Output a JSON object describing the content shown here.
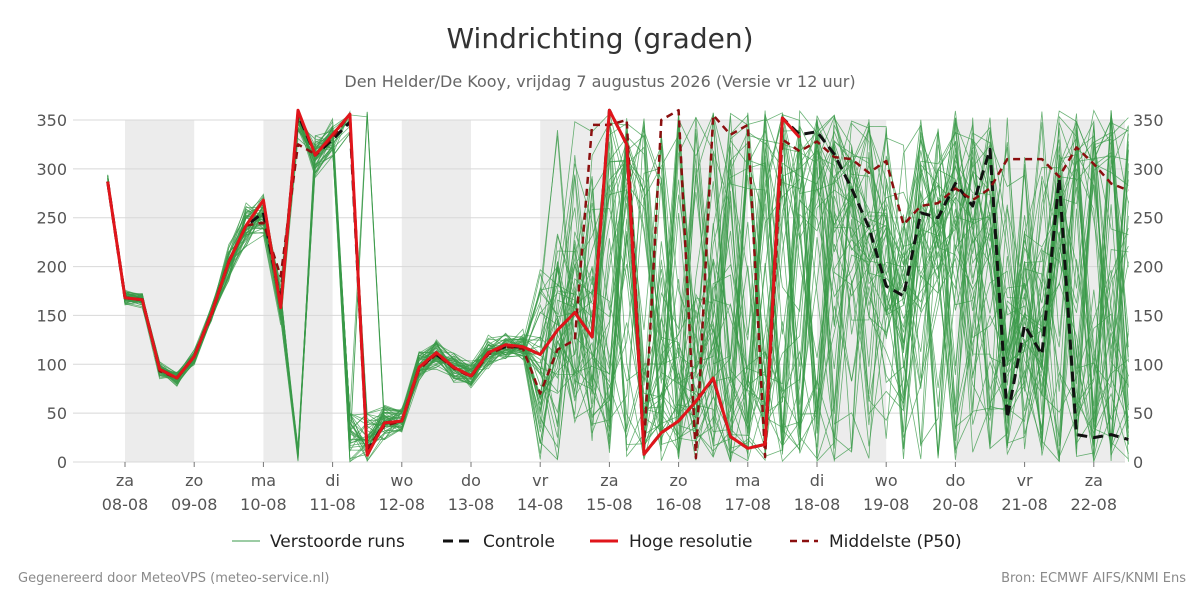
{
  "header": {
    "title": "Windrichting (graden)",
    "subtitle": "Den Helder/De Kooy, vrijdag  7 augustus 2026 (Versie vr 12 uur)"
  },
  "footer": {
    "left": "Gegenereerd door MeteoVPS (meteo-service.nl)",
    "right": "Bron: ECMWF AIFS/KNMI Ens"
  },
  "colors": {
    "ensemble": "#3a9a48",
    "control": "#111111",
    "hires": "#e0151b",
    "median": "#8b0f0f",
    "weekend_band": "#ececec",
    "grid": "#d8d8d8"
  },
  "chart_data": {
    "type": "line",
    "title": "Windrichting (graden)",
    "xlabel": "",
    "ylabel": "",
    "ylim": [
      0,
      350
    ],
    "y_ticks": [
      "0",
      "50",
      "100",
      "150",
      "200",
      "250",
      "300",
      "350"
    ],
    "xlim": [
      -0.2,
      14.5
    ],
    "x_ticks": [
      {
        "day": "za",
        "date": "08-08"
      },
      {
        "day": "zo",
        "date": "09-08"
      },
      {
        "day": "ma",
        "date": "10-08"
      },
      {
        "day": "di",
        "date": "11-08"
      },
      {
        "day": "wo",
        "date": "12-08"
      },
      {
        "day": "do",
        "date": "13-08"
      },
      {
        "day": "vr",
        "date": "14-08"
      },
      {
        "day": "za",
        "date": "15-08"
      },
      {
        "day": "zo",
        "date": "16-08"
      },
      {
        "day": "ma",
        "date": "17-08"
      },
      {
        "day": "di",
        "date": "18-08"
      },
      {
        "day": "wo",
        "date": "19-08"
      },
      {
        "day": "do",
        "date": "20-08"
      },
      {
        "day": "vr",
        "date": "21-08"
      },
      {
        "day": "za",
        "date": "22-08"
      }
    ],
    "shaded_spans": [
      [
        0,
        1
      ],
      [
        2,
        3
      ],
      [
        4,
        5
      ],
      [
        6,
        7
      ],
      [
        8,
        9
      ],
      [
        10,
        11
      ],
      [
        12,
        14.5
      ]
    ],
    "grid": true,
    "legend_position": "bottom",
    "ensemble_member_count": 50,
    "series": [
      {
        "name": "Controle",
        "style": "dashed",
        "points": [
          [
            -0.25,
            287
          ],
          [
            -0.0,
            168
          ],
          [
            0.25,
            166
          ],
          [
            0.5,
            95
          ],
          [
            0.75,
            86
          ],
          [
            1.0,
            108
          ],
          [
            1.25,
            152
          ],
          [
            1.5,
            205
          ],
          [
            1.75,
            242
          ],
          [
            2.0,
            255
          ],
          [
            2.25,
            163
          ],
          [
            2.5,
            356
          ],
          [
            2.75,
            314
          ],
          [
            3.0,
            330
          ],
          [
            3.25,
            348
          ],
          [
            3.5,
            10
          ],
          [
            3.75,
            40
          ],
          [
            4.0,
            42
          ],
          [
            4.25,
            97
          ],
          [
            4.5,
            110
          ],
          [
            4.75,
            97
          ],
          [
            5.0,
            88
          ],
          [
            5.25,
            112
          ],
          [
            5.5,
            118
          ],
          [
            5.75,
            118
          ],
          [
            6.0,
            110
          ],
          [
            6.25,
            135
          ],
          [
            6.5,
            153
          ],
          [
            6.75,
            128
          ],
          [
            7.0,
            360
          ],
          [
            7.25,
            325
          ],
          [
            7.5,
            8
          ],
          [
            7.75,
            30
          ],
          [
            8.0,
            42
          ],
          [
            8.25,
            62
          ],
          [
            8.5,
            85
          ],
          [
            8.75,
            26
          ],
          [
            9.0,
            14
          ],
          [
            9.25,
            18
          ],
          [
            9.5,
            352
          ],
          [
            9.75,
            335
          ],
          [
            10.0,
            338
          ],
          [
            10.25,
            315
          ],
          [
            10.5,
            280
          ],
          [
            10.75,
            240
          ],
          [
            11.0,
            180
          ],
          [
            11.25,
            170
          ],
          [
            11.5,
            255
          ],
          [
            11.75,
            250
          ],
          [
            12.0,
            285
          ],
          [
            12.25,
            262
          ],
          [
            12.5,
            320
          ],
          [
            12.75,
            45
          ],
          [
            13.0,
            140
          ],
          [
            13.25,
            110
          ],
          [
            13.5,
            290
          ],
          [
            13.75,
            28
          ],
          [
            14.0,
            25
          ],
          [
            14.25,
            28
          ],
          [
            14.5,
            23
          ]
        ]
      },
      {
        "name": "Hoge resolutie",
        "style": "solid",
        "points": [
          [
            -0.25,
            287
          ],
          [
            -0.0,
            168
          ],
          [
            0.25,
            166
          ],
          [
            0.5,
            95
          ],
          [
            0.75,
            86
          ],
          [
            1.0,
            108
          ],
          [
            1.25,
            152
          ],
          [
            1.5,
            205
          ],
          [
            1.75,
            242
          ],
          [
            2.0,
            268
          ],
          [
            2.25,
            158
          ],
          [
            2.5,
            360
          ],
          [
            2.75,
            314
          ],
          [
            3.0,
            335
          ],
          [
            3.25,
            356
          ],
          [
            3.5,
            7
          ],
          [
            3.75,
            40
          ],
          [
            4.0,
            42
          ],
          [
            4.25,
            97
          ],
          [
            4.5,
            112
          ],
          [
            4.75,
            97
          ],
          [
            5.0,
            88
          ],
          [
            5.25,
            112
          ],
          [
            5.5,
            120
          ],
          [
            5.75,
            118
          ],
          [
            6.0,
            110
          ],
          [
            6.25,
            135
          ],
          [
            6.5,
            153
          ],
          [
            6.75,
            128
          ],
          [
            7.0,
            360
          ],
          [
            7.25,
            325
          ],
          [
            7.5,
            8
          ],
          [
            7.75,
            30
          ],
          [
            8.0,
            42
          ],
          [
            8.25,
            62
          ],
          [
            8.5,
            86
          ],
          [
            8.75,
            26
          ],
          [
            9.0,
            14
          ],
          [
            9.25,
            18
          ],
          [
            9.5,
            352
          ],
          [
            9.75,
            332
          ]
        ]
      },
      {
        "name": "Middelste (P50)",
        "style": "dashed",
        "points": [
          [
            -0.25,
            287
          ],
          [
            -0.0,
            168
          ],
          [
            0.25,
            166
          ],
          [
            0.5,
            93
          ],
          [
            0.75,
            86
          ],
          [
            1.0,
            108
          ],
          [
            1.25,
            150
          ],
          [
            1.5,
            205
          ],
          [
            1.75,
            242
          ],
          [
            2.0,
            245
          ],
          [
            2.25,
            190
          ],
          [
            2.5,
            325
          ],
          [
            2.75,
            315
          ],
          [
            3.0,
            332
          ],
          [
            3.25,
            356
          ],
          [
            3.5,
            14
          ],
          [
            3.75,
            37
          ],
          [
            4.0,
            42
          ],
          [
            4.25,
            95
          ],
          [
            4.5,
            110
          ],
          [
            4.75,
            96
          ],
          [
            5.0,
            87
          ],
          [
            5.25,
            110
          ],
          [
            5.5,
            118
          ],
          [
            5.75,
            116
          ],
          [
            6.0,
            70
          ],
          [
            6.25,
            115
          ],
          [
            6.5,
            125
          ],
          [
            6.75,
            345
          ],
          [
            7.0,
            345
          ],
          [
            7.25,
            350
          ],
          [
            7.5,
            15
          ],
          [
            7.75,
            350
          ],
          [
            8.0,
            360
          ],
          [
            8.25,
            4
          ],
          [
            8.5,
            355
          ],
          [
            8.75,
            335
          ],
          [
            9.0,
            345
          ],
          [
            9.25,
            5
          ],
          [
            9.5,
            330
          ],
          [
            9.75,
            318
          ],
          [
            10.0,
            328
          ],
          [
            10.25,
            312
          ],
          [
            10.5,
            310
          ],
          [
            10.75,
            296
          ],
          [
            11.0,
            308
          ],
          [
            11.25,
            243
          ],
          [
            11.5,
            262
          ],
          [
            11.75,
            265
          ],
          [
            12.0,
            280
          ],
          [
            12.25,
            268
          ],
          [
            12.5,
            280
          ],
          [
            12.75,
            310
          ],
          [
            13.0,
            310
          ],
          [
            13.25,
            310
          ],
          [
            13.5,
            292
          ],
          [
            13.75,
            322
          ],
          [
            14.0,
            305
          ],
          [
            14.25,
            285
          ],
          [
            14.5,
            278
          ]
        ]
      }
    ],
    "legend": [
      "Verstoorde runs",
      "Controle",
      "Hoge resolutie",
      "Middelste (P50)"
    ]
  }
}
